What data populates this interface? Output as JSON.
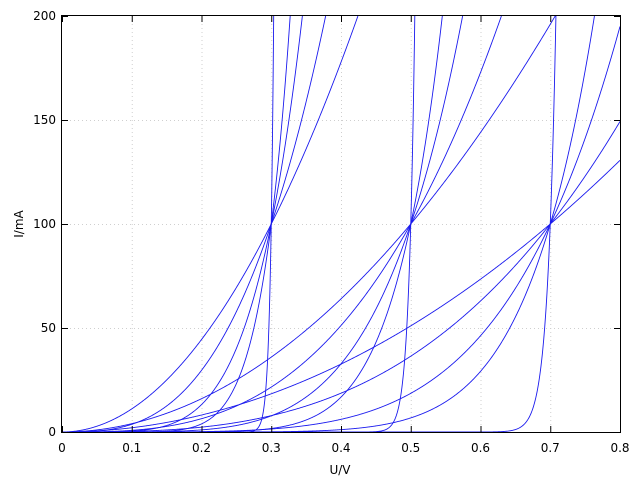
{
  "chart_data": {
    "type": "line",
    "title": "",
    "xlabel": "U/V",
    "ylabel": "I/mA",
    "xlim": [
      0,
      0.8
    ],
    "ylim": [
      0,
      200
    ],
    "xticks": [
      "0",
      "0.1",
      "0.2",
      "0.3",
      "0.4",
      "0.5",
      "0.6",
      "0.7",
      "0.8"
    ],
    "yticks": [
      "0",
      "50",
      "100",
      "150",
      "200"
    ],
    "grid": true,
    "legend": "none",
    "line_color": "#1a1aee",
    "curve_families": [
      {
        "anchor_u": 0.3,
        "anchor_i": 100,
        "exponents": [
          2,
          3,
          5,
          8,
          60
        ]
      },
      {
        "anchor_u": 0.5,
        "anchor_i": 100,
        "exponents": [
          2,
          3,
          5,
          8,
          60
        ]
      },
      {
        "anchor_u": 0.7,
        "anchor_i": 100,
        "exponents": [
          2,
          3,
          5,
          8,
          60
        ]
      }
    ]
  }
}
